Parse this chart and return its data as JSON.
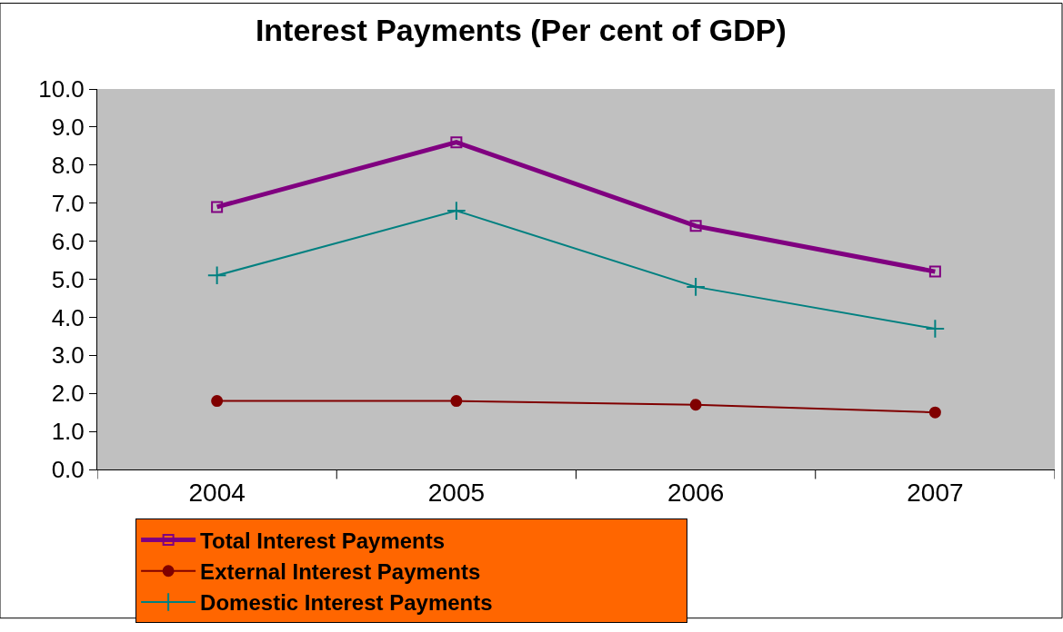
{
  "chart_data": {
    "type": "line",
    "title": "Interest Payments (Per cent of GDP)",
    "categories": [
      "2004",
      "2005",
      "2006",
      "2007"
    ],
    "series": [
      {
        "name": "Total Interest Payments",
        "color": "#800080",
        "marker": "square",
        "values": [
          6.9,
          8.6,
          6.4,
          5.2
        ]
      },
      {
        "name": "External Interest Payments",
        "color": "#800000",
        "marker": "circle",
        "values": [
          1.8,
          1.8,
          1.7,
          1.5
        ]
      },
      {
        "name": "Domestic Interest Payments",
        "color": "#008080",
        "marker": "cross",
        "values": [
          5.1,
          6.8,
          4.8,
          3.7
        ]
      }
    ],
    "ylim": [
      0,
      10
    ],
    "yticks": [
      {
        "value": 0,
        "label": "0.0"
      },
      {
        "value": 1,
        "label": "1.0"
      },
      {
        "value": 2,
        "label": "2.0"
      },
      {
        "value": 3,
        "label": "3.0"
      },
      {
        "value": 4,
        "label": "4.0"
      },
      {
        "value": 5,
        "label": "5.0"
      },
      {
        "value": 6,
        "label": "6.0"
      },
      {
        "value": 7,
        "label": "7.0"
      },
      {
        "value": 8,
        "label": "8.0"
      },
      {
        "value": 9,
        "label": "9.0"
      },
      {
        "value": 10,
        "label": "10.0"
      }
    ],
    "grid": false,
    "legend": "bottom",
    "line_style": "solid"
  }
}
